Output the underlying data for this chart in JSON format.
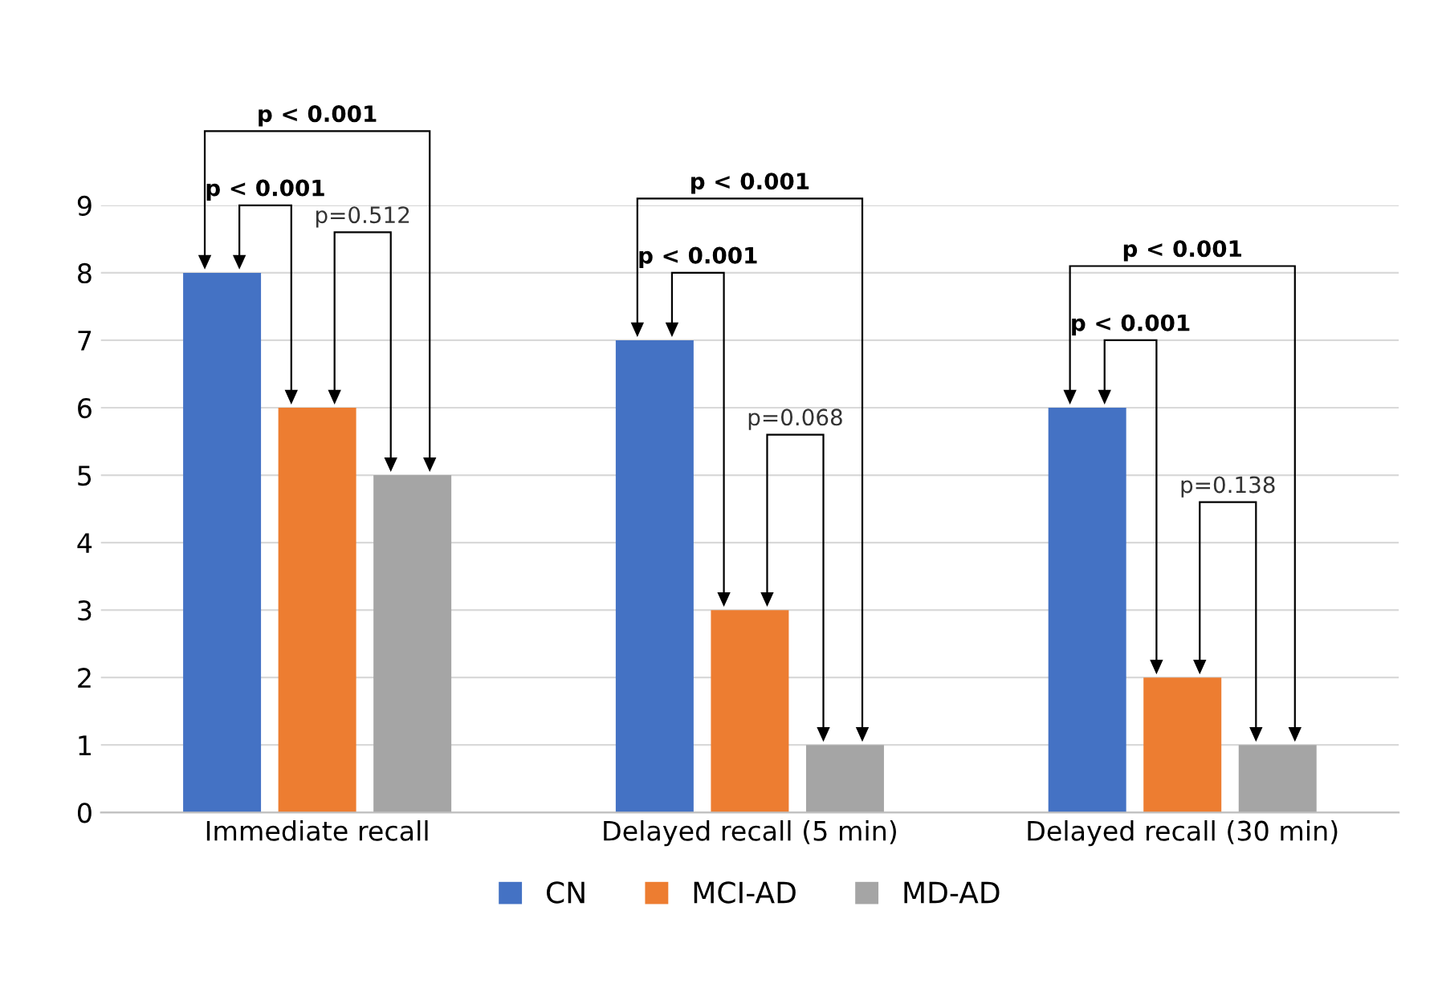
{
  "chart_data": {
    "type": "bar",
    "categories": [
      "Immediate recall",
      "Delayed recall (5 min)",
      "Delayed recall (30 min)"
    ],
    "series": [
      {
        "name": "CN",
        "color": "#4472c4",
        "values": [
          8,
          7,
          6
        ]
      },
      {
        "name": "MCI-AD",
        "color": "#ed7d31",
        "values": [
          6,
          3,
          2
        ]
      },
      {
        "name": "MD-AD",
        "color": "#a5a5a5",
        "values": [
          5,
          1,
          1
        ]
      }
    ],
    "ylim": [
      0,
      9
    ],
    "yticks": [
      0,
      1,
      2,
      3,
      4,
      5,
      6,
      7,
      8,
      9
    ],
    "grid": "y",
    "legend": "bottom",
    "annotations": [
      "p < 0.001",
      "p < 0.001",
      "p=0.512",
      "p < 0.001",
      "p < 0.001",
      "p=0.068",
      "p < 0.001",
      "p < 0.001",
      "p=0.138"
    ]
  }
}
